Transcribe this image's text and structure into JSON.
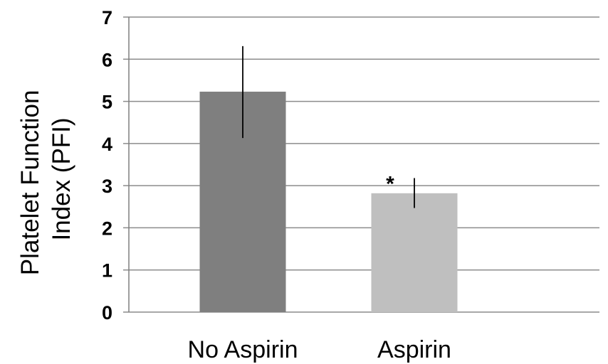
{
  "chart_data": {
    "type": "bar",
    "categories": [
      "No Aspirin",
      "Aspirin"
    ],
    "values": [
      5.23,
      2.82
    ],
    "error_low": [
      4.13,
      2.47
    ],
    "error_high": [
      6.31,
      3.18
    ],
    "bar_colors": [
      "#7f7f7f",
      "#bfbfbf"
    ],
    "annotations": [
      {
        "category": "Aspirin",
        "text": "*"
      }
    ],
    "ylabel_lines": [
      "Platelet Function",
      "Index (PFI)"
    ],
    "ylim": [
      0,
      7
    ],
    "yticks": [
      "0",
      "1",
      "2",
      "3",
      "4",
      "5",
      "6",
      "7"
    ],
    "grid": true,
    "legend": "none"
  }
}
